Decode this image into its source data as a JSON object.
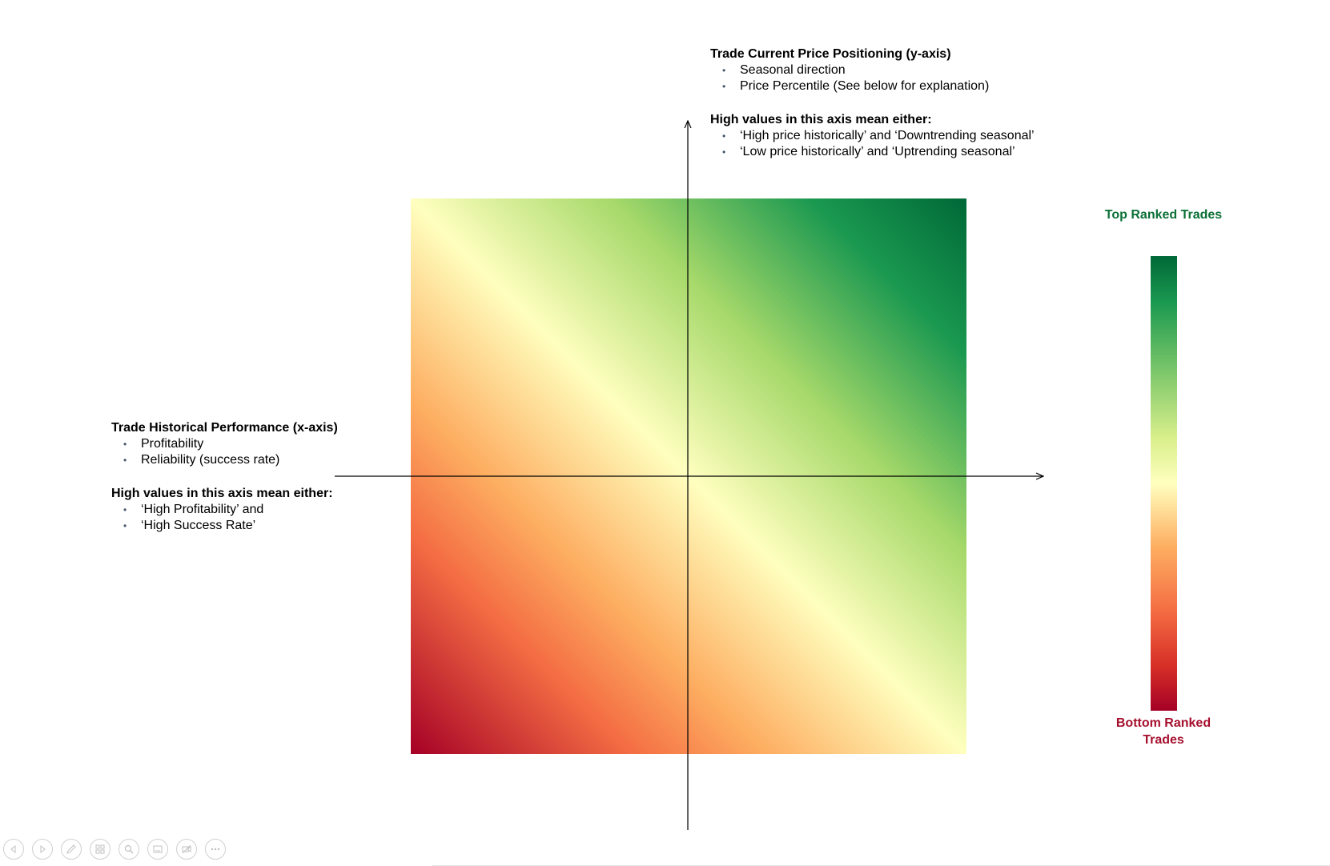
{
  "y_axis_block": {
    "title": "Trade Current Price Positioning (y-axis)",
    "bullets": [
      "Seasonal direction",
      "Price Percentile (See below for explanation)"
    ],
    "high_title": "High values in this axis mean either:",
    "high_bullets": [
      "‘High price historically’ and ‘Downtrending seasonal’",
      "‘Low price historically’ and ‘Uptrending seasonal’"
    ]
  },
  "x_axis_block": {
    "title": "Trade Historical Performance (x-axis)",
    "bullets": [
      "Profitability",
      "Reliability (success rate)"
    ],
    "high_title": "High values in this axis mean either:",
    "high_bullets": [
      "‘High Profitability’ and",
      "‘High Success Rate’"
    ]
  },
  "legend": {
    "top_label": "Top Ranked Trades",
    "bottom_label": "Bottom Ranked Trades",
    "top_color": "#0b7036",
    "bottom_color": "#a50f2d"
  },
  "gradient": {
    "low_color": "#a50026",
    "mid_color": "#ffffbf",
    "high_color": "#006837"
  },
  "toolbar": {
    "icons": [
      "previous-icon",
      "next-icon",
      "pen-icon",
      "slides-icon",
      "zoom-icon",
      "subtitles-icon",
      "camera-off-icon",
      "more-options-icon"
    ]
  }
}
